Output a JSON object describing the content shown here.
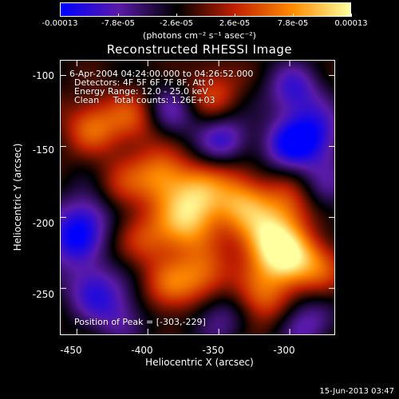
{
  "colorbar": {
    "ticks": [
      "-0.00013",
      "-7.8e-05",
      "-2.6e-05",
      "2.6e-05",
      "7.8e-05",
      "0.00013"
    ],
    "tick_values": [
      -0.00013,
      -7.8e-05,
      -2.6e-05,
      2.6e-05,
      7.8e-05,
      0.00013
    ],
    "units": "(photons cm⁻² s⁻¹ asec⁻²)"
  },
  "title": "Reconstructed RHESSI Image",
  "info": {
    "line1": "6-Apr-2004 04:24:00.000 to 04:26:52.000",
    "line2": "Detectors: 4F 5F 6F 7F 8F, Att 0",
    "line3": "Energy Range: 12.0 - 25.0 keV",
    "line4": "Clean     Total counts: 1.26E+03",
    "peak": "Position of Peak = [-303,-229]"
  },
  "axes": {
    "xlabel": "Heliocentric X (arcsec)",
    "ylabel": "Heliocentric Y (arcsec)",
    "xticks": [
      "-450",
      "-400",
      "-350",
      "-300"
    ],
    "yticks": [
      "-100",
      "-150",
      "-200",
      "-250"
    ]
  },
  "footer": {
    "timestamp": "15-Jun-2013 03:47"
  },
  "chart_data": {
    "type": "heatmap",
    "title": "Reconstructed RHESSI Image",
    "xlabel": "Heliocentric X (arcsec)",
    "ylabel": "Heliocentric Y (arcsec)",
    "xlim": [
      -462,
      -268
    ],
    "ylim": [
      -283,
      -89
    ],
    "x_ticks": [
      -450,
      -400,
      -350,
      -300
    ],
    "y_ticks": [
      -100,
      -150,
      -200,
      -250
    ],
    "colorbar_range": [
      -0.00013,
      0.00013
    ],
    "colorbar_label": "(photons cm⁻² s⁻¹ asec⁻²)",
    "peak_position": [
      -303,
      -229
    ],
    "colormap": [
      "#0000ff",
      "#5a1aa8",
      "#000000",
      "#c02000",
      "#ff8c00",
      "#ffffa0"
    ],
    "sources": [
      {
        "x": -303,
        "y": -229,
        "level": 1.0
      },
      {
        "x": -318,
        "y": -212,
        "level": 0.8
      },
      {
        "x": -363,
        "y": -185,
        "level": 0.75
      },
      {
        "x": -390,
        "y": -170,
        "level": 0.7
      },
      {
        "x": -375,
        "y": -205,
        "level": 0.7
      },
      {
        "x": -360,
        "y": -240,
        "level": 0.6
      },
      {
        "x": -335,
        "y": -190,
        "level": 0.6
      },
      {
        "x": -300,
        "y": -190,
        "level": 0.55
      },
      {
        "x": -320,
        "y": -258,
        "level": 0.55
      },
      {
        "x": -385,
        "y": -250,
        "level": 0.5
      },
      {
        "x": -440,
        "y": -135,
        "level": 0.55
      },
      {
        "x": -410,
        "y": -130,
        "level": 0.5
      },
      {
        "x": -355,
        "y": -112,
        "level": 0.45
      },
      {
        "x": -420,
        "y": -180,
        "level": 0.4
      },
      {
        "x": -280,
        "y": -235,
        "level": 0.45
      },
      {
        "x": -400,
        "y": -215,
        "level": 0.4
      },
      {
        "x": -340,
        "y": -160,
        "level": 0.4
      },
      {
        "x": -345,
        "y": -148,
        "level": -0.8
      },
      {
        "x": -297,
        "y": -110,
        "level": -0.6
      },
      {
        "x": -300,
        "y": -150,
        "level": -0.7
      },
      {
        "x": -455,
        "y": -215,
        "level": -0.7
      },
      {
        "x": -440,
        "y": -250,
        "level": -0.6
      },
      {
        "x": -385,
        "y": -125,
        "level": -0.5
      },
      {
        "x": -280,
        "y": -140,
        "level": -0.6
      },
      {
        "x": -290,
        "y": -275,
        "level": -0.5
      },
      {
        "x": -350,
        "y": -270,
        "level": -0.45
      },
      {
        "x": -440,
        "y": -195,
        "level": -0.5
      },
      {
        "x": -420,
        "y": -270,
        "level": -0.45
      },
      {
        "x": -275,
        "y": -180,
        "level": -0.4
      }
    ]
  }
}
